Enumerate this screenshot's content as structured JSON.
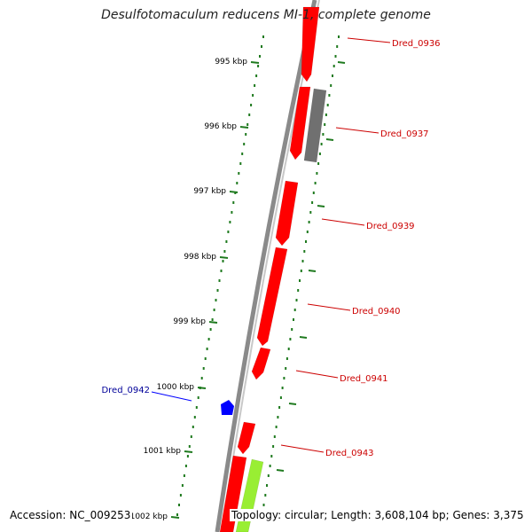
{
  "title": "Desulfotomaculum reducens MI-1, complete genome",
  "footer": {
    "accession": "Accession: NC_009253",
    "topology": "Topology: circular; Length: 3,608,104 bp; Genes: 3,375"
  },
  "colors": {
    "backbone": "#8a8a8a",
    "tick": "#1f7a1f",
    "gene_forward": "#ff0000",
    "gene_other": "#707070",
    "gene_selected": "#0000ff",
    "gene_green": "#99ee33",
    "label_default": "#cc0000",
    "label_selected": "#000099"
  },
  "axis": {
    "unit": "kbp",
    "ticks": [
      "995 kbp",
      "996 kbp",
      "997 kbp",
      "998 kbp",
      "999 kbp",
      "1000 kbp",
      "1001 kbp",
      "1002 kbp"
    ]
  },
  "genes": [
    {
      "label": "Dred_0936",
      "color": "#ff0000",
      "strand": "+"
    },
    {
      "label": "Dred_0937",
      "color": "#707070",
      "strand": "-"
    },
    {
      "label": "Dred_0939",
      "color": "#ff0000",
      "strand": "+"
    },
    {
      "label": "Dred_0940",
      "color": "#ff0000",
      "strand": "+"
    },
    {
      "label": "Dred_0941",
      "color": "#ff0000",
      "strand": "+"
    },
    {
      "label": "Dred_0942",
      "color": "#0000ff",
      "strand": "+"
    },
    {
      "label": "Dred_0943",
      "color": "#ff0000",
      "strand": "+"
    }
  ]
}
